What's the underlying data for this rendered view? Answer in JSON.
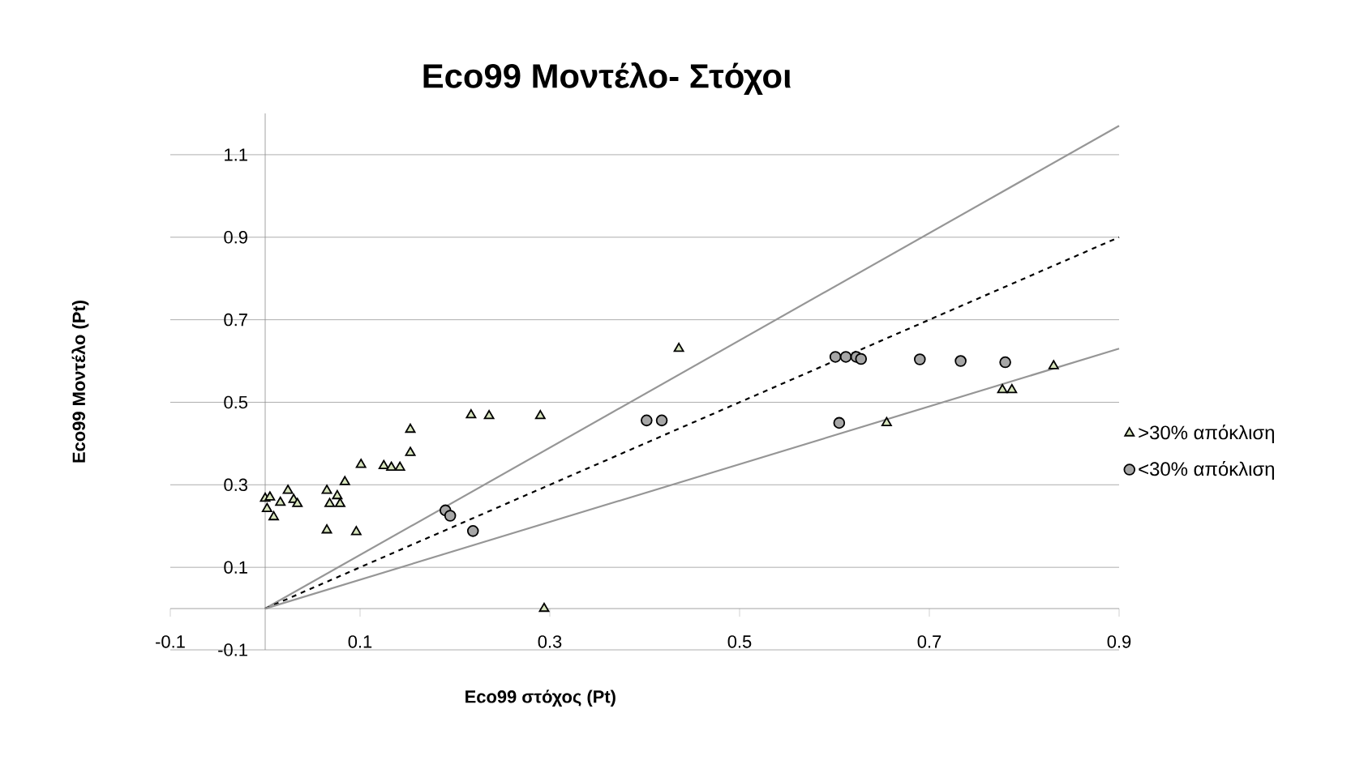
{
  "chart_data": {
    "type": "scatter",
    "title": "Eco99 Μοντέλο- Στόχοι",
    "xlabel": "Eco99 στόχος (Pt)",
    "ylabel": "Eco99 Μοντέλο (Pt)",
    "xlim": [
      -0.1,
      0.9
    ],
    "ylim": [
      -0.1,
      1.2
    ],
    "xticks": [
      -0.1,
      0.1,
      0.3,
      0.5,
      0.7,
      0.9
    ],
    "yticks": [
      -0.1,
      0.1,
      0.3,
      0.5,
      0.7,
      0.9,
      1.1
    ],
    "grid": "y",
    "legend": "right",
    "series": [
      {
        "name": ">30% απόκλιση",
        "color": "#d7e4bd",
        "marker": "triangle",
        "x": [
          0.0,
          0.005,
          0.002,
          0.009,
          0.016,
          0.024,
          0.03,
          0.034,
          0.065,
          0.068,
          0.076,
          0.079,
          0.084,
          0.065,
          0.096,
          0.101,
          0.125,
          0.133,
          0.142,
          0.153,
          0.153,
          0.217,
          0.236,
          0.29,
          0.294,
          0.436,
          0.655,
          0.777,
          0.787,
          0.831
        ],
        "values": [
          0.267,
          0.27,
          0.242,
          0.222,
          0.257,
          0.286,
          0.264,
          0.254,
          0.286,
          0.254,
          0.273,
          0.254,
          0.307,
          0.19,
          0.186,
          0.349,
          0.346,
          0.342,
          0.342,
          0.378,
          0.434,
          0.469,
          0.467,
          0.467,
          0.0,
          0.63,
          0.45,
          0.53,
          0.53,
          0.588
        ]
      },
      {
        "name": "<30% απόκλιση",
        "color": "#a6a6a6",
        "marker": "circle",
        "x": [
          0.19,
          0.195,
          0.219,
          0.402,
          0.418,
          0.605,
          0.601,
          0.612,
          0.623,
          0.628,
          0.69,
          0.733,
          0.78
        ],
        "values": [
          0.238,
          0.225,
          0.188,
          0.456,
          0.456,
          0.45,
          0.61,
          0.61,
          0.61,
          0.605,
          0.604,
          0.6,
          0.597
        ]
      },
      {
        "type": "line",
        "color": "#969696",
        "marker": "none",
        "x": [
          0,
          0.9
        ],
        "values": [
          0,
          1.17
        ]
      },
      {
        "type": "line",
        "color": "#000000",
        "marker": "none",
        "line_style": "dashed",
        "x": [
          0,
          0.9
        ],
        "values": [
          0,
          0.9
        ]
      },
      {
        "type": "line",
        "color": "#969696",
        "marker": "none",
        "x": [
          0,
          0.9
        ],
        "values": [
          0,
          0.63
        ]
      }
    ]
  }
}
